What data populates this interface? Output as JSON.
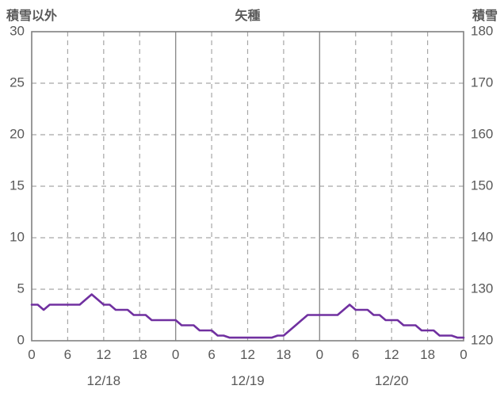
{
  "header": {
    "left_axis_title": "積雪以外",
    "chart_title": "矢種",
    "right_axis_title": "積雪"
  },
  "colors": {
    "series_line": "#7030A0",
    "grid_dashed": "#a6a6a6",
    "grid_solid": "#8c8c8c",
    "border": "#808080",
    "text": "#595959"
  },
  "chart_data": {
    "type": "line",
    "title": "矢種",
    "left_axis": {
      "label": "積雪以外",
      "min": 0,
      "max": 30,
      "ticks": [
        0,
        5,
        10,
        15,
        20,
        25,
        30
      ]
    },
    "right_axis": {
      "label": "積雪",
      "min": 120,
      "max": 180,
      "ticks": [
        120,
        130,
        140,
        150,
        160,
        170,
        180
      ]
    },
    "x_axis": {
      "min": 0,
      "max": 72,
      "hour_ticks": [
        0,
        6,
        12,
        18,
        24,
        30,
        36,
        42,
        48,
        54,
        60,
        66,
        72
      ],
      "hour_tick_labels": [
        "0",
        "6",
        "12",
        "18",
        "0",
        "6",
        "12",
        "18",
        "0",
        "6",
        "12",
        "18",
        "0"
      ],
      "day_boundaries": [
        24,
        48
      ],
      "day_labels": [
        {
          "label": "12/18",
          "center_hour": 12
        },
        {
          "label": "12/19",
          "center_hour": 36
        },
        {
          "label": "12/20",
          "center_hour": 60
        }
      ]
    },
    "grid": {
      "horizontal": "dashed",
      "vertical_6h": "dashed",
      "vertical_day": "solid"
    },
    "legend_position": "none",
    "series": [
      {
        "name": "積雪以外",
        "axis": "left",
        "color": "#7030A0",
        "x": [
          0,
          1,
          2,
          3,
          4,
          5,
          6,
          7,
          8,
          9,
          10,
          11,
          12,
          13,
          14,
          15,
          16,
          17,
          18,
          19,
          20,
          21,
          22,
          23,
          24,
          25,
          26,
          27,
          28,
          29,
          30,
          31,
          32,
          33,
          34,
          35,
          36,
          37,
          38,
          39,
          40,
          41,
          42,
          43,
          44,
          45,
          46,
          47,
          48,
          49,
          50,
          51,
          52,
          53,
          54,
          55,
          56,
          57,
          58,
          59,
          60,
          61,
          62,
          63,
          64,
          65,
          66,
          67,
          68,
          69,
          70,
          71,
          72
        ],
        "values": [
          3.5,
          3.5,
          3,
          3.5,
          3.5,
          3.5,
          3.5,
          3.5,
          3.5,
          4,
          4.5,
          4,
          3.5,
          3.5,
          3,
          3,
          3,
          2.5,
          2.5,
          2.5,
          2,
          2,
          2,
          2,
          2,
          1.5,
          1.5,
          1.5,
          1,
          1,
          1,
          0.5,
          0.5,
          0.3,
          0.3,
          0.3,
          0.3,
          0.3,
          0.3,
          0.3,
          0.3,
          0.5,
          0.5,
          1,
          1.5,
          2,
          2.5,
          2.5,
          2.5,
          2.5,
          2.5,
          2.5,
          3,
          3.5,
          3,
          3,
          3,
          2.5,
          2.5,
          2,
          2,
          2,
          1.5,
          1.5,
          1.5,
          1,
          1,
          1,
          0.5,
          0.5,
          0.5,
          0.3,
          0.3
        ]
      }
    ]
  }
}
